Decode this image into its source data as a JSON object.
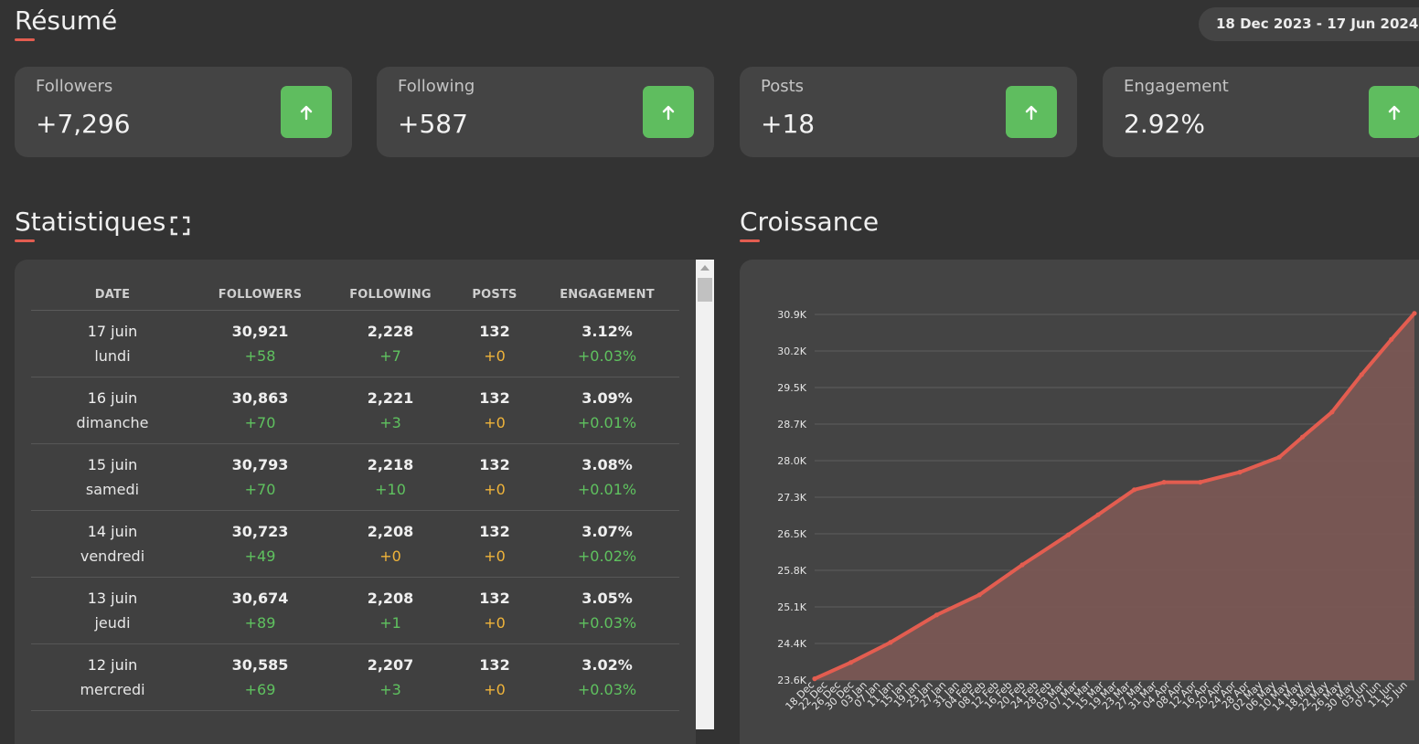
{
  "resume": {
    "title": "Résumé",
    "date_range": "18 Dec 2023 - 17 Jun 2024"
  },
  "cards": [
    {
      "label": "Followers",
      "value": "+7,296"
    },
    {
      "label": "Following",
      "value": "+587"
    },
    {
      "label": "Posts",
      "value": "+18"
    },
    {
      "label": "Engagement",
      "value": "2.92%"
    }
  ],
  "statistiques": {
    "title": "Statistiques",
    "headers": [
      "DATE",
      "FOLLOWERS",
      "FOLLOWING",
      "POSTS",
      "ENGAGEMENT"
    ],
    "rows": [
      {
        "date": "17 juin",
        "day": "lundi",
        "followers": "30,921",
        "followers_delta": "+58",
        "following": "2,228",
        "following_delta": "+7",
        "posts": "132",
        "posts_delta": "+0",
        "engagement": "3.12%",
        "engagement_delta": "+0.03%"
      },
      {
        "date": "16 juin",
        "day": "dimanche",
        "followers": "30,863",
        "followers_delta": "+70",
        "following": "2,221",
        "following_delta": "+3",
        "posts": "132",
        "posts_delta": "+0",
        "engagement": "3.09%",
        "engagement_delta": "+0.01%"
      },
      {
        "date": "15 juin",
        "day": "samedi",
        "followers": "30,793",
        "followers_delta": "+70",
        "following": "2,218",
        "following_delta": "+10",
        "posts": "132",
        "posts_delta": "+0",
        "engagement": "3.08%",
        "engagement_delta": "+0.01%"
      },
      {
        "date": "14 juin",
        "day": "vendredi",
        "followers": "30,723",
        "followers_delta": "+49",
        "following": "2,208",
        "following_delta": "+0",
        "posts": "132",
        "posts_delta": "+0",
        "engagement": "3.07%",
        "engagement_delta": "+0.02%"
      },
      {
        "date": "13 juin",
        "day": "jeudi",
        "followers": "30,674",
        "followers_delta": "+89",
        "following": "2,208",
        "following_delta": "+1",
        "posts": "132",
        "posts_delta": "+0",
        "engagement": "3.05%",
        "engagement_delta": "+0.03%"
      },
      {
        "date": "12 juin",
        "day": "mercredi",
        "followers": "30,585",
        "followers_delta": "+69",
        "following": "2,207",
        "following_delta": "+3",
        "posts": "132",
        "posts_delta": "+0",
        "engagement": "3.02%",
        "engagement_delta": "+0.03%"
      }
    ]
  },
  "croissance": {
    "title": "Croissance"
  },
  "colors": {
    "accent": "#e35d50",
    "positive": "#5fc25f",
    "neutral": "#f0b43a",
    "card_up": "#5fbd5f",
    "area_fill": "#7a5754"
  },
  "icons": {
    "card_arrow": "arrow-up-icon",
    "expand": "expand-icon"
  },
  "chart_data": {
    "type": "area",
    "title": "Croissance",
    "xlabel": "",
    "ylabel": "",
    "y_ticks": [
      "30.9K",
      "30.2K",
      "29.5K",
      "28.7K",
      "28.0K",
      "27.3K",
      "26.5K",
      "25.8K",
      "25.1K",
      "24.4K",
      "23.6K"
    ],
    "ylim": [
      23600,
      30900
    ],
    "x_ticks": [
      "18 Dec",
      "22 Dec",
      "26 Dec",
      "30 Dec",
      "03 Jan",
      "07 Jan",
      "11 Jan",
      "15 Jan",
      "19 Jan",
      "23 Jan",
      "27 Jan",
      "31 Jan",
      "04 Feb",
      "08 Feb",
      "12 Feb",
      "16 Feb",
      "20 Feb",
      "24 Feb",
      "28 Feb",
      "03 Mar",
      "07 Mar",
      "11 Mar",
      "15 Mar",
      "19 Mar",
      "23 Mar",
      "27 Mar",
      "31 Mar",
      "04 Apr",
      "08 Apr",
      "12 Apr",
      "16 Apr",
      "20 Apr",
      "24 Apr",
      "28 Apr",
      "02 May",
      "06 May",
      "10 May",
      "14 May",
      "18 May",
      "22 May",
      "26 May",
      "30 May",
      "03 Jun",
      "07 Jun",
      "11 Jun",
      "15 Jun"
    ],
    "series": [
      {
        "x": [
          "18 Dec",
          "29 Dec",
          "10 Jan",
          "24 Jan",
          "06 Feb",
          "19 Feb",
          "04 Mar",
          "13 Mar",
          "24 Mar",
          "02 Apr",
          "13 Apr",
          "25 Apr",
          "07 May",
          "14 May",
          "23 May",
          "01 Jun",
          "10 Jun",
          "17 Jun"
        ],
        "values": [
          23625,
          23950,
          24350,
          24900,
          25300,
          25900,
          26500,
          26900,
          27400,
          27550,
          27550,
          27750,
          28050,
          28450,
          28950,
          29700,
          30400,
          30921
        ]
      }
    ],
    "grid": true,
    "legend": "none"
  }
}
